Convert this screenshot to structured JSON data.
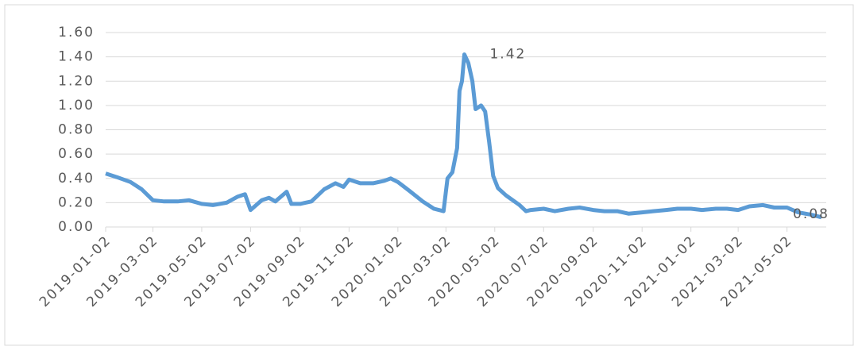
{
  "chart_data": {
    "type": "line",
    "x": [
      "2019-01-02",
      "2019-01-16",
      "2019-02-02",
      "2019-02-16",
      "2019-03-02",
      "2019-03-16",
      "2019-04-02",
      "2019-04-16",
      "2019-05-02",
      "2019-05-16",
      "2019-06-02",
      "2019-06-16",
      "2019-06-25",
      "2019-07-02",
      "2019-07-16",
      "2019-07-25",
      "2019-08-02",
      "2019-08-16",
      "2019-08-22",
      "2019-09-02",
      "2019-09-16",
      "2019-10-02",
      "2019-10-16",
      "2019-10-26",
      "2019-11-02",
      "2019-11-16",
      "2019-12-02",
      "2019-12-16",
      "2019-12-24",
      "2020-01-02",
      "2020-01-16",
      "2020-02-02",
      "2020-02-16",
      "2020-02-28",
      "2020-03-04",
      "2020-03-10",
      "2020-03-16",
      "2020-03-19",
      "2020-03-22",
      "2020-03-25",
      "2020-03-30",
      "2020-04-04",
      "2020-04-08",
      "2020-04-15",
      "2020-04-20",
      "2020-04-25",
      "2020-04-30",
      "2020-05-06",
      "2020-05-16",
      "2020-06-02",
      "2020-06-10",
      "2020-06-16",
      "2020-07-02",
      "2020-07-16",
      "2020-08-02",
      "2020-08-16",
      "2020-09-02",
      "2020-09-16",
      "2020-10-02",
      "2020-10-16",
      "2020-11-02",
      "2020-11-16",
      "2020-12-02",
      "2020-12-16",
      "2021-01-02",
      "2021-01-16",
      "2021-02-02",
      "2021-02-16",
      "2021-03-02",
      "2021-03-16",
      "2021-04-02",
      "2021-04-16",
      "2021-05-02",
      "2021-05-16",
      "2021-06-02",
      "2021-06-14"
    ],
    "series": [
      {
        "color": "#5b9bd5",
        "values": [
          0.44,
          0.41,
          0.37,
          0.31,
          0.22,
          0.21,
          0.21,
          0.22,
          0.19,
          0.18,
          0.2,
          0.25,
          0.27,
          0.14,
          0.22,
          0.24,
          0.21,
          0.29,
          0.19,
          0.19,
          0.21,
          0.31,
          0.36,
          0.33,
          0.39,
          0.36,
          0.36,
          0.38,
          0.4,
          0.37,
          0.3,
          0.21,
          0.15,
          0.13,
          0.4,
          0.45,
          0.65,
          1.12,
          1.2,
          1.42,
          1.35,
          1.2,
          0.97,
          1.0,
          0.95,
          0.7,
          0.42,
          0.32,
          0.26,
          0.18,
          0.13,
          0.14,
          0.15,
          0.13,
          0.15,
          0.16,
          0.14,
          0.13,
          0.13,
          0.11,
          0.12,
          0.13,
          0.14,
          0.15,
          0.15,
          0.14,
          0.15,
          0.15,
          0.14,
          0.17,
          0.18,
          0.16,
          0.16,
          0.12,
          0.1,
          0.08
        ]
      }
    ],
    "xlim": [
      "2019-01-02",
      "2021-06-20"
    ],
    "xticks": [
      "2019-01-02",
      "2019-03-02",
      "2019-05-02",
      "2019-07-02",
      "2019-09-02",
      "2019-11-02",
      "2020-01-02",
      "2020-03-02",
      "2020-05-02",
      "2020-07-02",
      "2020-09-02",
      "2020-11-02",
      "2021-01-02",
      "2021-03-02",
      "2021-05-02"
    ],
    "ylim": [
      0,
      1.6
    ],
    "yticks": [
      {
        "value": 0,
        "label": "0.00"
      },
      {
        "value": 0.2,
        "label": "0.20"
      },
      {
        "value": 0.4,
        "label": "0.40"
      },
      {
        "value": 0.6,
        "label": "0.60"
      },
      {
        "value": 0.8,
        "label": "0.80"
      },
      {
        "value": 1,
        "label": "1.00"
      },
      {
        "value": 1.2,
        "label": "1.20"
      },
      {
        "value": 1.4,
        "label": "1.40"
      },
      {
        "value": 1.6,
        "label": "1.60"
      }
    ],
    "grid": true
  }
}
